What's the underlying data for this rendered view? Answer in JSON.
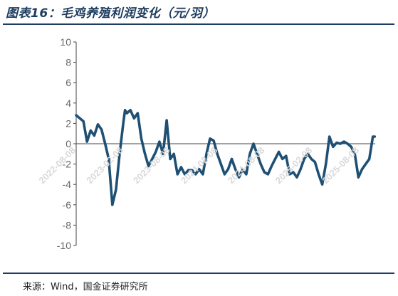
{
  "header": {
    "title": "图表16：毛鸡养殖利润变化（元/羽）"
  },
  "footer": {
    "source": "来源：Wind，国金证券研究所"
  },
  "colors": {
    "line": "#1f5074",
    "title": "#1d3c5f"
  },
  "chart_data": {
    "type": "line",
    "title": "图表16：毛鸡养殖利润变化（元/羽）",
    "xlabel": "",
    "ylabel": "",
    "ylim": [
      -10,
      10
    ],
    "yticks": [
      10,
      8,
      6,
      4,
      2,
      0,
      -2,
      -4,
      -6,
      -8,
      -10
    ],
    "xticks": [
      "2022-08-08",
      "2023-02-08",
      "2023-08-08",
      "2024-02-08",
      "2024-08-08",
      "2025-02-08",
      "2025-08-08"
    ],
    "grid": false,
    "legend": "none",
    "series": [
      {
        "x": [
          "2022-08-08",
          "2022-08-22",
          "2022-09-05",
          "2022-09-19",
          "2022-10-03",
          "2022-10-17",
          "2022-10-31",
          "2022-11-14",
          "2022-11-28",
          "2022-12-12",
          "2022-12-26",
          "2023-01-09",
          "2023-01-23",
          "2023-02-06",
          "2023-02-13",
          "2023-02-20",
          "2023-03-06",
          "2023-03-20",
          "2023-04-03",
          "2023-04-17",
          "2023-05-01",
          "2023-05-15",
          "2023-05-29",
          "2023-06-12",
          "2023-06-26",
          "2023-07-10",
          "2023-07-24",
          "2023-08-07",
          "2023-08-21",
          "2023-09-04",
          "2023-09-18",
          "2023-10-02",
          "2023-10-16",
          "2023-10-30",
          "2023-11-13",
          "2023-11-27",
          "2023-12-11",
          "2023-12-25",
          "2024-01-08",
          "2024-01-22",
          "2024-02-05",
          "2024-02-19",
          "2024-03-04",
          "2024-03-18",
          "2024-04-01",
          "2024-04-15",
          "2024-04-29",
          "2024-05-13",
          "2024-05-27",
          "2024-06-10",
          "2024-06-24",
          "2024-07-08",
          "2024-07-22",
          "2024-08-05",
          "2024-08-19",
          "2024-09-02",
          "2024-09-16",
          "2024-09-30",
          "2024-10-14",
          "2024-10-28",
          "2024-11-11",
          "2024-11-25",
          "2024-12-09",
          "2024-12-23",
          "2025-01-06",
          "2025-01-20",
          "2025-02-03",
          "2025-02-17",
          "2025-03-03",
          "2025-03-17",
          "2025-03-31",
          "2025-04-14",
          "2025-04-28",
          "2025-05-12",
          "2025-05-26",
          "2025-06-09",
          "2025-06-23",
          "2025-07-07",
          "2025-07-21",
          "2025-08-04",
          "2025-08-18",
          "2025-09-01",
          "2025-09-15",
          "2025-09-29",
          "2025-10-06"
        ],
        "values": [
          2.8,
          2.5,
          2.2,
          0.2,
          1.3,
          0.8,
          1.9,
          1.4,
          0.0,
          -1.5,
          -6.0,
          -4.5,
          -1.0,
          2.0,
          3.3,
          3.0,
          3.3,
          2.5,
          3.0,
          0.5,
          -1.0,
          -2.2,
          -1.5,
          -0.8,
          0.2,
          -1.0,
          2.3,
          -1.5,
          -1.0,
          -3.0,
          -2.3,
          -3.0,
          -2.6,
          -2.6,
          -3.0,
          -2.5,
          -3.0,
          -1.0,
          0.5,
          0.3,
          -1.0,
          -2.0,
          -3.0,
          -2.5,
          -1.5,
          -2.5,
          -3.3,
          -2.5,
          -3.0,
          -1.0,
          0.0,
          -1.0,
          -2.0,
          -2.8,
          -3.0,
          -2.2,
          -1.5,
          -0.8,
          -1.5,
          -1.2,
          -3.0,
          -2.8,
          -3.3,
          -2.5,
          -1.5,
          -1.0,
          -1.5,
          -1.8,
          -3.0,
          -4.0,
          -2.0,
          0.7,
          -0.3,
          0.1,
          0.0,
          0.2,
          0.0,
          -0.3,
          -1.0,
          -3.3,
          -2.5,
          -2.0,
          -1.5,
          0.7,
          0.7
        ]
      }
    ]
  }
}
